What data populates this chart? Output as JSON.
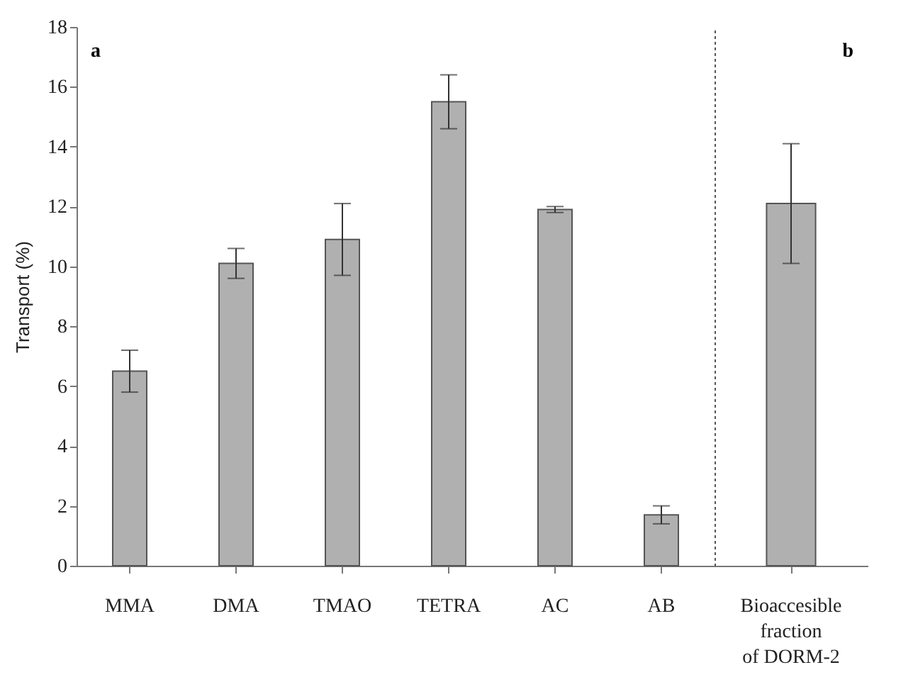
{
  "chart_data": [
    {
      "type": "bar",
      "ylabel": "Transport  (%)",
      "annotations": [
        "a"
      ],
      "categories": [
        "MMA",
        "DMA",
        "TMAO",
        "TETRA",
        "AC",
        "AB"
      ],
      "values": [
        6.5,
        10.1,
        10.9,
        15.5,
        11.9,
        1.7
      ],
      "errors": [
        [
          5.8,
          7.2
        ],
        [
          9.6,
          10.6
        ],
        [
          9.7,
          12.1
        ],
        [
          14.6,
          16.4
        ],
        [
          11.8,
          12.0
        ],
        [
          1.4,
          2.0
        ]
      ],
      "color": "#b0b0b0",
      "ylim": [
        0,
        18
      ],
      "yticks": [
        0,
        2,
        4,
        6,
        8,
        10,
        12,
        14,
        16,
        18
      ],
      "grid": false
    },
    {
      "type": "bar",
      "annotations": [
        "b"
      ],
      "categories": [
        "Bioaccesible fraction of DORM-2"
      ],
      "values": [
        12.1
      ],
      "errors": [
        [
          10.1,
          14.1
        ]
      ],
      "color": "#b0b0b0",
      "ylim": [
        0,
        18
      ],
      "tick_labels": "x",
      "grid": false
    }
  ]
}
